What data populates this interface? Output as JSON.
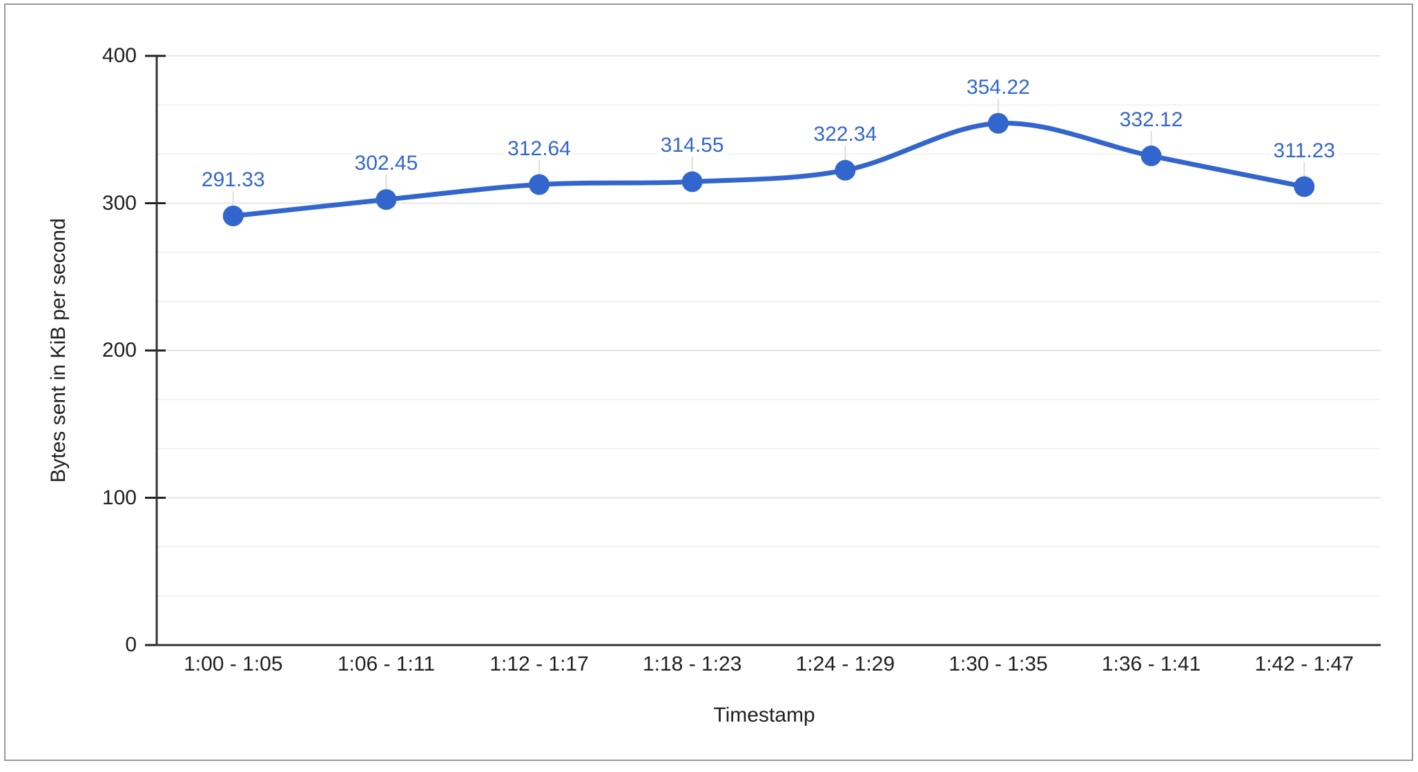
{
  "chart_data": {
    "type": "line",
    "title": "",
    "categories": [
      "1:00 - 1:05",
      "1:06 - 1:11",
      "1:12 - 1:17",
      "1:18 - 1:23",
      "1:24 - 1:29",
      "1:30 - 1:35",
      "1:36 - 1:41",
      "1:42 - 1:47"
    ],
    "values": [
      291.33,
      302.45,
      312.64,
      314.55,
      322.34,
      354.22,
      332.12,
      311.23
    ],
    "point_labels": [
      "291.33",
      "302.45",
      "312.64",
      "314.55",
      "322.34",
      "354.22",
      "332.12",
      "311.23"
    ],
    "xlabel": "Timestamp",
    "ylabel": "Bytes sent in KiB per second",
    "ylim": [
      0,
      400
    ],
    "yticks": [
      0,
      100,
      200,
      300,
      400
    ],
    "ytick_labels": [
      "0",
      "100",
      "200",
      "300",
      "400"
    ],
    "minor_gridlines_per_interval": 2,
    "grid": true,
    "legend": "none",
    "smooth": true,
    "series_color": "#3366CC"
  },
  "colors": {
    "background": "#FFFFFF",
    "frame_border": "#999999",
    "axis_line": "#333333",
    "tick_mark": "#212121",
    "major_gridline": "#E6E6E6",
    "minor_gridline": "#F2F2F2",
    "leader_line": "#DDDDDD",
    "axis_text": "#202020",
    "data_label_text": "#3366CC"
  }
}
